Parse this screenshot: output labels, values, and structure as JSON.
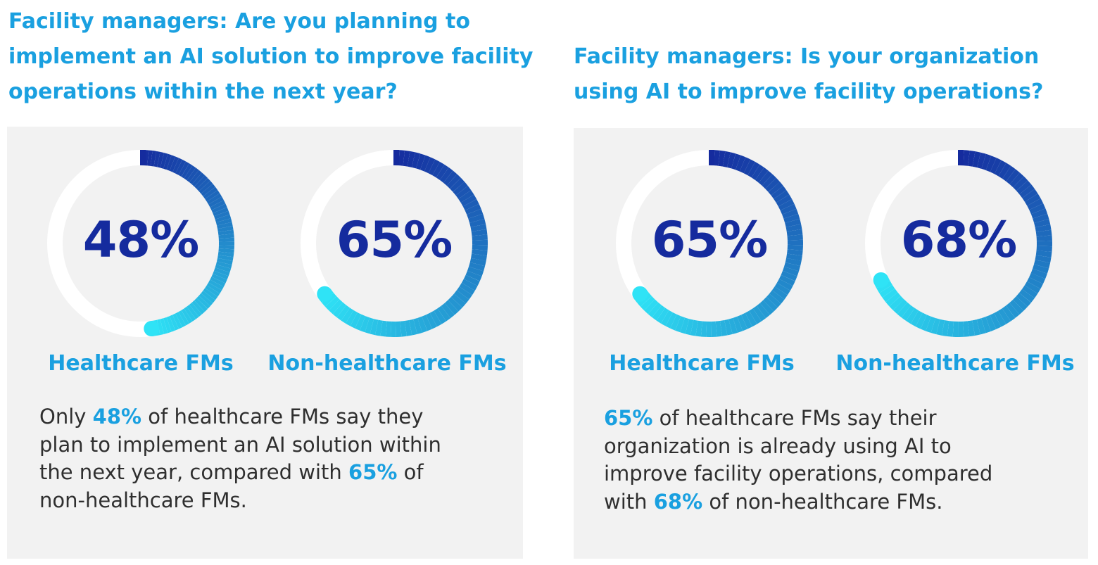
{
  "colors": {
    "accent": "#1aa0e0",
    "primary": "#152b9e",
    "gradient_start": "#152b9e",
    "gradient_end": "#2fe3f6",
    "track": "#ffffff",
    "card_bg": "#f2f2f2",
    "body_text": "#2f2f2f"
  },
  "panels": [
    {
      "title_lines": [
        "Facility managers: Are you planning to",
        "implement an AI solution to improve facility",
        "operations within the next year?"
      ],
      "desc_lines": [
        [
          {
            "t": "Only "
          },
          {
            "t": "48%",
            "hl": true
          },
          {
            "t": " of healthcare FMs say they"
          }
        ],
        [
          {
            "t": "plan to implement an AI solution within"
          }
        ],
        [
          {
            "t": "the next year, compared with "
          },
          {
            "t": "65%",
            "hl": true
          },
          {
            "t": " of"
          }
        ],
        [
          {
            "t": "non-healthcare FMs."
          }
        ]
      ]
    },
    {
      "title_lines": [
        "Facility managers: Is your organization",
        "using AI to improve facility operations?"
      ],
      "desc_lines": [
        [
          {
            "t": "65%",
            "hl": true
          },
          {
            "t": " of healthcare FMs say their"
          }
        ],
        [
          {
            "t": "organization is already using AI to"
          }
        ],
        [
          {
            "t": "improve facility operations, compared"
          }
        ],
        [
          {
            "t": "with "
          },
          {
            "t": "68%",
            "hl": true
          },
          {
            "t": " of non-healthcare FMs."
          }
        ]
      ]
    }
  ],
  "chart_data": [
    {
      "type": "pie",
      "categories": [
        "Healthcare FMs",
        "Non-healthcare FMs"
      ],
      "values": [
        48,
        65
      ],
      "value_labels": [
        "48%",
        "65%"
      ],
      "unit": "%"
    },
    {
      "type": "pie",
      "categories": [
        "Healthcare FMs",
        "Non-healthcare FMs"
      ],
      "values": [
        65,
        68
      ],
      "value_labels": [
        "65%",
        "68%"
      ],
      "unit": "%"
    }
  ]
}
